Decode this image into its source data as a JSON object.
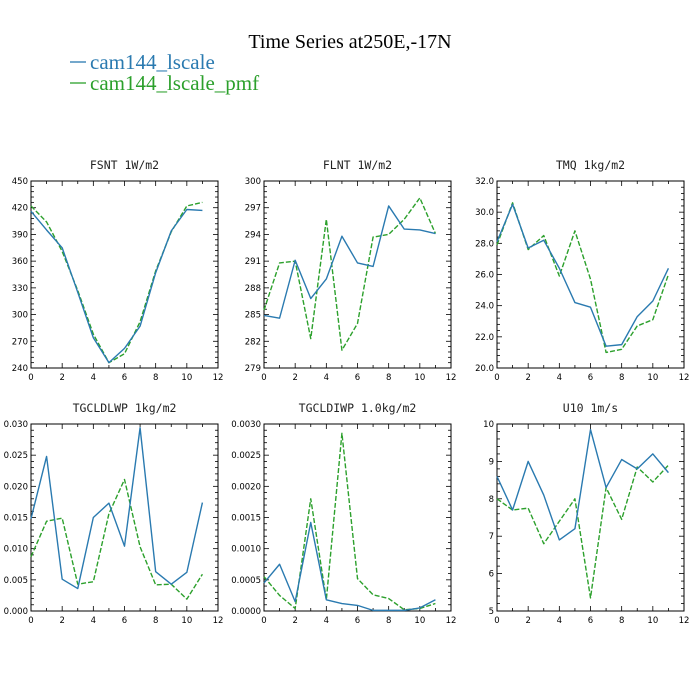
{
  "figure": {
    "title": "Time Series at250E,-17N",
    "legend": [
      {
        "name": "cam144_lscale",
        "color": "#2a7ab0",
        "dash": "solid"
      },
      {
        "name": "cam144_lscale_pmf",
        "color": "#2ca02c",
        "dash": "dashed"
      }
    ]
  },
  "chart_data": [
    {
      "type": "line",
      "title": "FSNT   1W/m2",
      "x": [
        0,
        1,
        2,
        3,
        4,
        5,
        6,
        7,
        8,
        9,
        10,
        11
      ],
      "xlim": [
        0,
        12
      ],
      "xticks": [
        0,
        2,
        4,
        6,
        8,
        10,
        12
      ],
      "ylim": [
        240,
        450
      ],
      "yticks": [
        240,
        270,
        300,
        330,
        360,
        390,
        420,
        450
      ],
      "ytick_labels": [
        "240",
        "270",
        "300",
        "330",
        "360",
        "390",
        "420",
        "450"
      ],
      "series": [
        {
          "name": "cam144_lscale",
          "values": [
            416,
            395,
            375,
            325,
            274,
            246,
            262,
            287,
            347,
            394,
            418,
            417
          ]
        },
        {
          "name": "cam144_lscale_pmf",
          "values": [
            422,
            404,
            371,
            327,
            278,
            246,
            256,
            292,
            349,
            393,
            422,
            426
          ]
        }
      ]
    },
    {
      "type": "line",
      "title": "FLNT   1W/m2",
      "x": [
        0,
        1,
        2,
        3,
        4,
        5,
        6,
        7,
        8,
        9,
        10,
        11
      ],
      "xlim": [
        0,
        12
      ],
      "xticks": [
        0,
        2,
        4,
        6,
        8,
        10,
        12
      ],
      "ylim": [
        279,
        300
      ],
      "yticks": [
        279,
        282,
        285,
        288,
        291,
        294,
        297,
        300
      ],
      "ytick_labels": [
        "279",
        "282",
        "285",
        "288",
        "291",
        "294",
        "297",
        "300"
      ],
      "series": [
        {
          "name": "cam144_lscale",
          "values": [
            284.9,
            284.6,
            291.1,
            286.8,
            289.0,
            293.8,
            290.8,
            290.4,
            297.2,
            294.6,
            294.5,
            294.1
          ]
        },
        {
          "name": "cam144_lscale_pmf",
          "values": [
            285.5,
            290.8,
            291.0,
            282.3,
            295.7,
            281.0,
            284.0,
            293.7,
            294.0,
            295.7,
            298.1,
            294.1
          ]
        }
      ]
    },
    {
      "type": "line",
      "title": "TMQ   1kg/m2",
      "x": [
        0,
        1,
        2,
        3,
        4,
        5,
        6,
        7,
        8,
        9,
        10,
        11
      ],
      "xlim": [
        0,
        12
      ],
      "xticks": [
        0,
        2,
        4,
        6,
        8,
        10,
        12
      ],
      "ylim": [
        20,
        32
      ],
      "yticks": [
        20,
        22,
        24,
        26,
        28,
        30,
        32
      ],
      "ytick_labels": [
        "20.0",
        "22.0",
        "24.0",
        "26.0",
        "28.0",
        "30.0",
        "32.0"
      ],
      "series": [
        {
          "name": "cam144_lscale",
          "values": [
            28.1,
            30.5,
            27.7,
            28.2,
            26.4,
            24.2,
            23.9,
            21.4,
            21.5,
            23.3,
            24.3,
            26.4
          ]
        },
        {
          "name": "cam144_lscale_pmf",
          "values": [
            27.9,
            30.6,
            27.6,
            28.5,
            25.9,
            28.8,
            25.7,
            21.0,
            21.2,
            22.7,
            23.1,
            26.0
          ]
        }
      ]
    },
    {
      "type": "line",
      "title": "TGCLDLWP   1kg/m2",
      "x": [
        0,
        1,
        2,
        3,
        4,
        5,
        6,
        7,
        8,
        9,
        10,
        11
      ],
      "xlim": [
        0,
        12
      ],
      "xticks": [
        0,
        2,
        4,
        6,
        8,
        10,
        12
      ],
      "ylim": [
        0,
        0.03
      ],
      "yticks": [
        0,
        0.005,
        0.01,
        0.015,
        0.02,
        0.025,
        0.03
      ],
      "ytick_labels": [
        "0.000",
        "0.005",
        "0.010",
        "0.015",
        "0.020",
        "0.025",
        "0.030"
      ],
      "series": [
        {
          "name": "cam144_lscale",
          "values": [
            0.0148,
            0.0248,
            0.0051,
            0.0036,
            0.015,
            0.0173,
            0.0104,
            0.0294,
            0.0063,
            0.0043,
            0.0062,
            0.0174
          ]
        },
        {
          "name": "cam144_lscale_pmf",
          "values": [
            0.0087,
            0.0144,
            0.0149,
            0.0043,
            0.0047,
            0.0156,
            0.0211,
            0.0103,
            0.0042,
            0.0043,
            0.0019,
            0.0059
          ]
        }
      ]
    },
    {
      "type": "line",
      "title": "TGCLDIWP   1.0kg/m2",
      "x": [
        0,
        1,
        2,
        3,
        4,
        5,
        6,
        7,
        8,
        9,
        10,
        11
      ],
      "xlim": [
        0,
        12
      ],
      "xticks": [
        0,
        2,
        4,
        6,
        8,
        10,
        12
      ],
      "ylim": [
        0,
        0.003
      ],
      "yticks": [
        0,
        0.0005,
        0.001,
        0.0015,
        0.002,
        0.0025,
        0.003
      ],
      "ytick_labels": [
        "0.0000",
        "0.0005",
        "0.0010",
        "0.0015",
        "0.0020",
        "0.0025",
        "0.0030"
      ],
      "series": [
        {
          "name": "cam144_lscale",
          "values": [
            0.00045,
            0.00075,
            0.00015,
            0.00142,
            0.00018,
            0.00012,
            9e-05,
            1e-05,
            1e-05,
            1e-05,
            5e-05,
            0.00018
          ]
        },
        {
          "name": "cam144_lscale_pmf",
          "values": [
            0.00055,
            0.00025,
            4e-05,
            0.0018,
            0.00018,
            0.00285,
            0.00052,
            0.00026,
            0.0002,
            2e-05,
            4e-05,
            0.00012
          ]
        }
      ]
    },
    {
      "type": "line",
      "title": "U10   1m/s",
      "x": [
        0,
        1,
        2,
        3,
        4,
        5,
        6,
        7,
        8,
        9,
        10,
        11
      ],
      "xlim": [
        0,
        12
      ],
      "xticks": [
        0,
        2,
        4,
        6,
        8,
        10,
        12
      ],
      "ylim": [
        5,
        10
      ],
      "yticks": [
        5,
        6,
        7,
        8,
        9,
        10
      ],
      "ytick_labels": [
        "5",
        "6",
        "7",
        "8",
        "9",
        "10"
      ],
      "series": [
        {
          "name": "cam144_lscale",
          "values": [
            8.6,
            7.7,
            9.0,
            8.1,
            6.9,
            7.2,
            9.85,
            8.3,
            9.05,
            8.8,
            9.2,
            8.7
          ]
        },
        {
          "name": "cam144_lscale_pmf",
          "values": [
            8.0,
            7.7,
            7.75,
            6.8,
            7.4,
            8.0,
            5.35,
            8.3,
            7.45,
            8.85,
            8.45,
            8.9
          ]
        }
      ]
    }
  ]
}
